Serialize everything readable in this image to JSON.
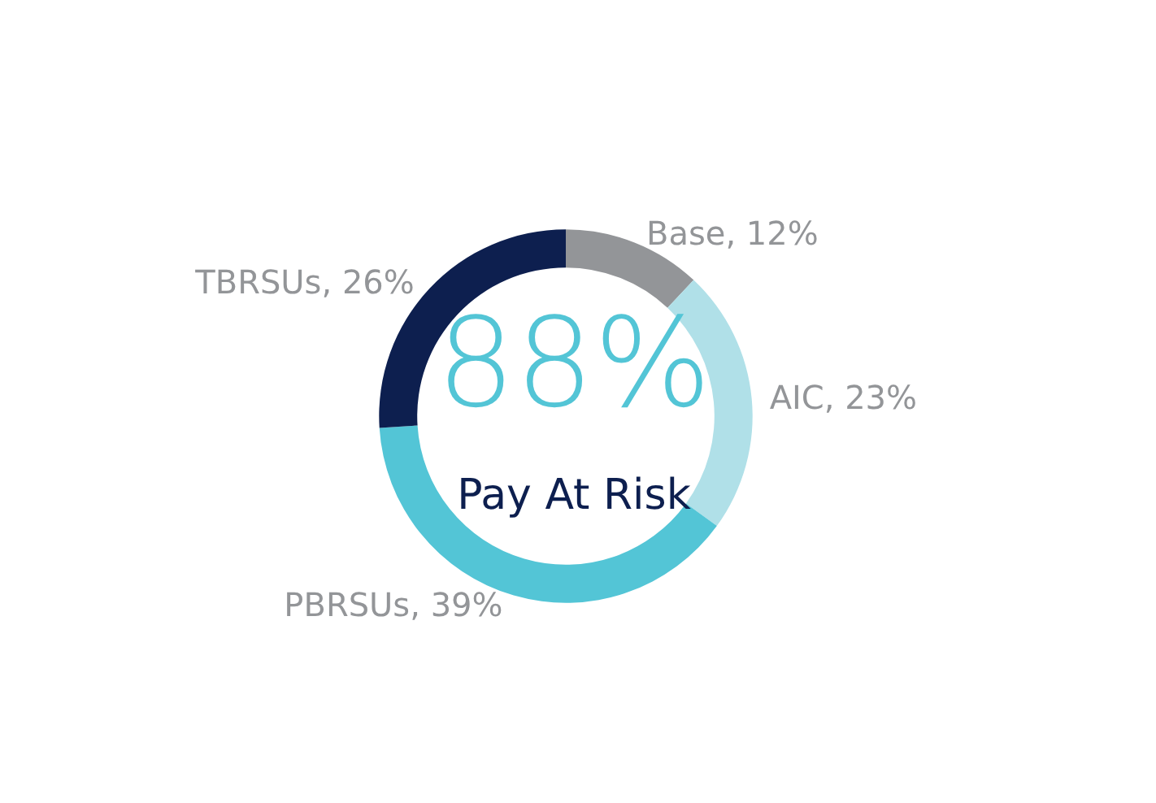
{
  "chart_data": {
    "type": "donut",
    "categories": [
      "Base",
      "AIC",
      "PBRSUs",
      "TBRSUs"
    ],
    "values": [
      12,
      23,
      39,
      26
    ],
    "value_labels": [
      "12%",
      "23%",
      "39%",
      "26%"
    ],
    "colors": [
      "#939598",
      "#b0e0e8",
      "#53c5d6",
      "#0d1f4f"
    ],
    "annotations": [
      "88%",
      "Pay At Risk"
    ],
    "legend": false
  }
}
